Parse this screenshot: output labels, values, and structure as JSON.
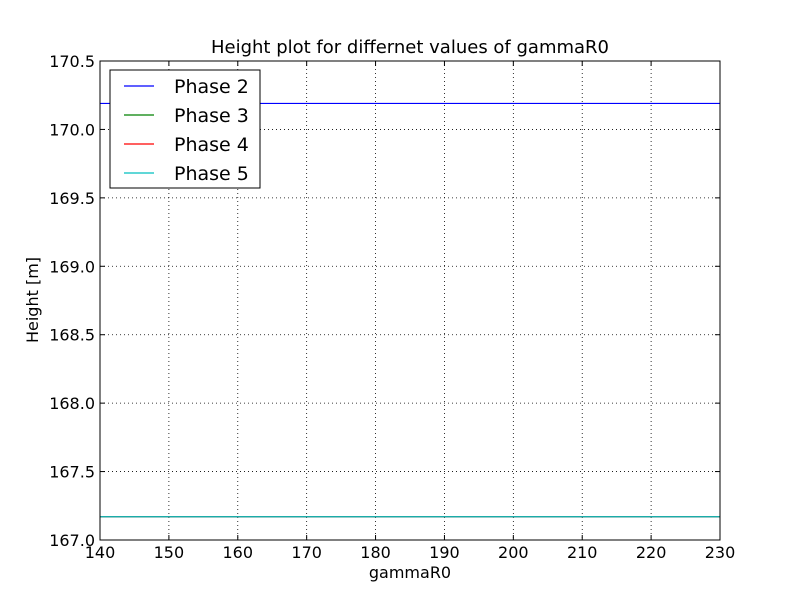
{
  "chart_data": {
    "type": "line",
    "title": "Height plot for differnet values of gammaR0",
    "xlabel": "gammaR0",
    "ylabel": "Height [m]",
    "xlim": [
      140,
      230
    ],
    "ylim": [
      167.0,
      170.5
    ],
    "xticks": [
      "140",
      "150",
      "160",
      "170",
      "180",
      "190",
      "200",
      "210",
      "220",
      "230"
    ],
    "yticks": [
      "167.0",
      "167.5",
      "168.0",
      "168.5",
      "169.0",
      "169.5",
      "170.0",
      "170.5"
    ],
    "grid": true,
    "legend_position": "top-left",
    "series": [
      {
        "name": "Phase 2",
        "color": "#0000ff",
        "x": [
          140,
          230
        ],
        "y": [
          170.19,
          170.19
        ]
      },
      {
        "name": "Phase 3",
        "color": "#008000",
        "x": [
          140,
          230
        ],
        "y": [
          167.17,
          167.17
        ]
      },
      {
        "name": "Phase 4",
        "color": "#ff0000",
        "x": [
          140,
          230
        ],
        "y": [
          167.17,
          167.17
        ]
      },
      {
        "name": "Phase 5",
        "color": "#00bfbf",
        "x": [
          140,
          230
        ],
        "y": [
          167.17,
          167.17
        ]
      }
    ]
  }
}
